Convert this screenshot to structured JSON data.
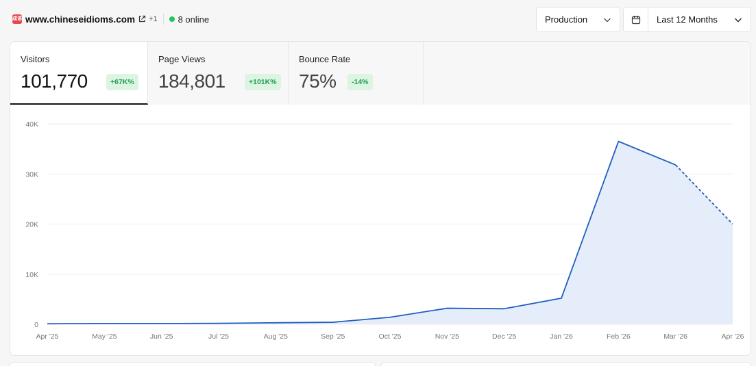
{
  "header": {
    "favicon_text": "成语",
    "site": "www.chineseidioms.com",
    "extra_count": "+1",
    "online": "8 online",
    "online_color": "#22c55e"
  },
  "controls": {
    "environment": "Production",
    "range": "Last 12 Months"
  },
  "stats": [
    {
      "label": "Visitors",
      "value": "101,770",
      "badge": "+67K%"
    },
    {
      "label": "Page Views",
      "value": "184,801",
      "badge": "+101K%"
    },
    {
      "label": "Bounce Rate",
      "value": "75%",
      "badge": "-14%"
    }
  ],
  "chart_data": {
    "type": "area",
    "categories": [
      "Apr '25",
      "May '25",
      "Jun '25",
      "Jul '25",
      "Aug '25",
      "Sep '25",
      "Oct '25",
      "Nov '25",
      "Dec '25",
      "Jan '26",
      "Feb '26",
      "Mar '26",
      "Apr '26"
    ],
    "values": [
      100,
      150,
      150,
      180,
      300,
      400,
      1400,
      3200,
      3100,
      5200,
      36500,
      31800,
      20000
    ],
    "projected_from_index": 11,
    "y_ticks": [
      "0",
      "10K",
      "20K",
      "30K",
      "40K"
    ],
    "ylim": [
      0,
      40000
    ],
    "grid": true,
    "line_color": "#1f5fbf",
    "fill_color": "#e4edf9"
  }
}
